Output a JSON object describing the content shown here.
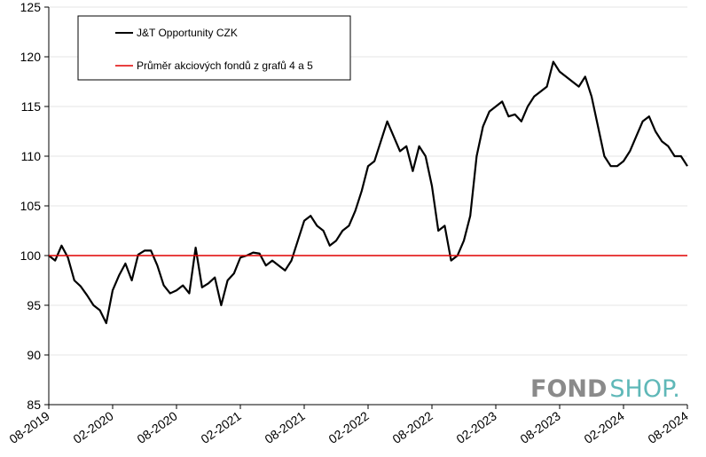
{
  "chart_data": {
    "type": "line",
    "title": "",
    "xlabel": "",
    "ylabel": "",
    "ylim": [
      85,
      125
    ],
    "yticks": [
      85,
      90,
      95,
      100,
      105,
      110,
      115,
      120,
      125
    ],
    "xticks": [
      "08-2019",
      "02-2020",
      "08-2020",
      "02-2021",
      "08-2021",
      "02-2022",
      "08-2022",
      "02-2023",
      "08-2023",
      "02-2024",
      "08-2024"
    ],
    "grid": true,
    "legend_position": "top-left",
    "series": [
      {
        "name": "J&T Opportunity CZK",
        "color": "#000000",
        "x": [
          0.0,
          0.1,
          0.2,
          0.3,
          0.4,
          0.5,
          0.6,
          0.7,
          0.8,
          0.9,
          1.0,
          1.1,
          1.2,
          1.3,
          1.4,
          1.5,
          1.6,
          1.7,
          1.8,
          1.9,
          2.0,
          2.1,
          2.2,
          2.3,
          2.4,
          2.5,
          2.6,
          2.7,
          2.8,
          2.9,
          3.0,
          3.1,
          3.2,
          3.3,
          3.4,
          3.5,
          3.6,
          3.7,
          3.8,
          3.9,
          4.0,
          4.1,
          4.2,
          4.3,
          4.4,
          4.5,
          4.6,
          4.7,
          4.8,
          4.9,
          5.0,
          5.1,
          5.2,
          5.3,
          5.4,
          5.5,
          5.6,
          5.7,
          5.8,
          5.9,
          6.0,
          6.1,
          6.2,
          6.3,
          6.4,
          6.5,
          6.6,
          6.7,
          6.8,
          6.9,
          7.0,
          7.1,
          7.2,
          7.3,
          7.4,
          7.5,
          7.6,
          7.7,
          7.8,
          7.9,
          8.0,
          8.1,
          8.2,
          8.3,
          8.4,
          8.5,
          8.6,
          8.7,
          8.8,
          8.9,
          9.0,
          9.1,
          9.2,
          9.3,
          9.4,
          9.5,
          9.6,
          9.7,
          9.8,
          9.9,
          10.0
        ],
        "values": [
          100.0,
          99.5,
          101.0,
          99.8,
          97.5,
          96.9,
          96.0,
          95.0,
          94.5,
          93.2,
          96.5,
          98.0,
          99.2,
          97.5,
          100.1,
          100.5,
          100.5,
          99.0,
          97.0,
          96.2,
          96.5,
          97.0,
          96.2,
          100.8,
          96.8,
          97.2,
          97.8,
          95.0,
          97.5,
          98.2,
          99.8,
          100.0,
          100.3,
          100.2,
          99.0,
          99.5,
          99.0,
          98.5,
          99.5,
          101.5,
          103.5,
          104.0,
          103.0,
          102.5,
          101.0,
          101.5,
          102.5,
          103.0,
          104.5,
          106.5,
          109.0,
          109.5,
          111.5,
          113.5,
          112.0,
          110.5,
          111.0,
          108.5,
          111.0,
          110.0,
          107.0,
          102.5,
          103.0,
          99.5,
          100.0,
          101.5,
          104.0,
          110.0,
          113.0,
          114.5,
          115.0,
          115.5,
          114.0,
          114.2,
          113.5,
          115.0,
          116.0,
          116.5,
          117.0,
          119.5,
          118.5,
          118.0,
          117.5,
          117.0,
          118.0,
          116.0,
          113.0,
          110.0,
          109.0,
          109.0,
          109.5,
          110.5,
          112.0,
          113.5,
          114.0,
          112.5,
          111.5,
          111.0,
          110.0,
          110.0,
          109.0
        ]
      },
      {
        "name": "Průměr akciových fondů z grafů 4 a 5",
        "color": "#e00000",
        "x": [
          0,
          10
        ],
        "values": [
          100,
          100
        ]
      }
    ]
  },
  "logo": {
    "part1": "FOND",
    "part2": "SHOP",
    "dot": "."
  }
}
